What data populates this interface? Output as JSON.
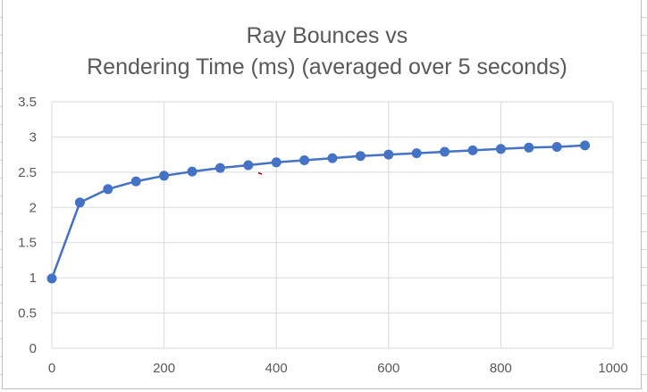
{
  "chart_data": {
    "type": "line",
    "title_lines": [
      "Ray Bounces vs",
      "Rendering Time (ms) (averaged over 5 seconds)"
    ],
    "xlabel": "",
    "ylabel": "",
    "xlim": [
      0,
      1000
    ],
    "ylim": [
      0,
      3.5
    ],
    "x_ticks": [
      0,
      200,
      400,
      600,
      800,
      1000
    ],
    "y_ticks": [
      0,
      0.5,
      1,
      1.5,
      2,
      2.5,
      3,
      3.5
    ],
    "x_tick_labels": [
      "0",
      "200",
      "400",
      "600",
      "800",
      "1000"
    ],
    "y_tick_labels": [
      "0",
      "0.5",
      "1",
      "1.5",
      "2",
      "2.5",
      "3",
      "3.5"
    ],
    "grid": true,
    "legend": "none",
    "series": [
      {
        "color": "#4472c4",
        "x": [
          0,
          50,
          100,
          150,
          200,
          250,
          300,
          350,
          400,
          450,
          500,
          550,
          600,
          650,
          700,
          750,
          800,
          850,
          900,
          950
        ],
        "y": [
          0.99,
          2.07,
          2.26,
          2.37,
          2.45,
          2.51,
          2.56,
          2.6,
          2.64,
          2.67,
          2.7,
          2.73,
          2.75,
          2.77,
          2.79,
          2.81,
          2.83,
          2.85,
          2.86,
          2.88
        ]
      }
    ]
  }
}
